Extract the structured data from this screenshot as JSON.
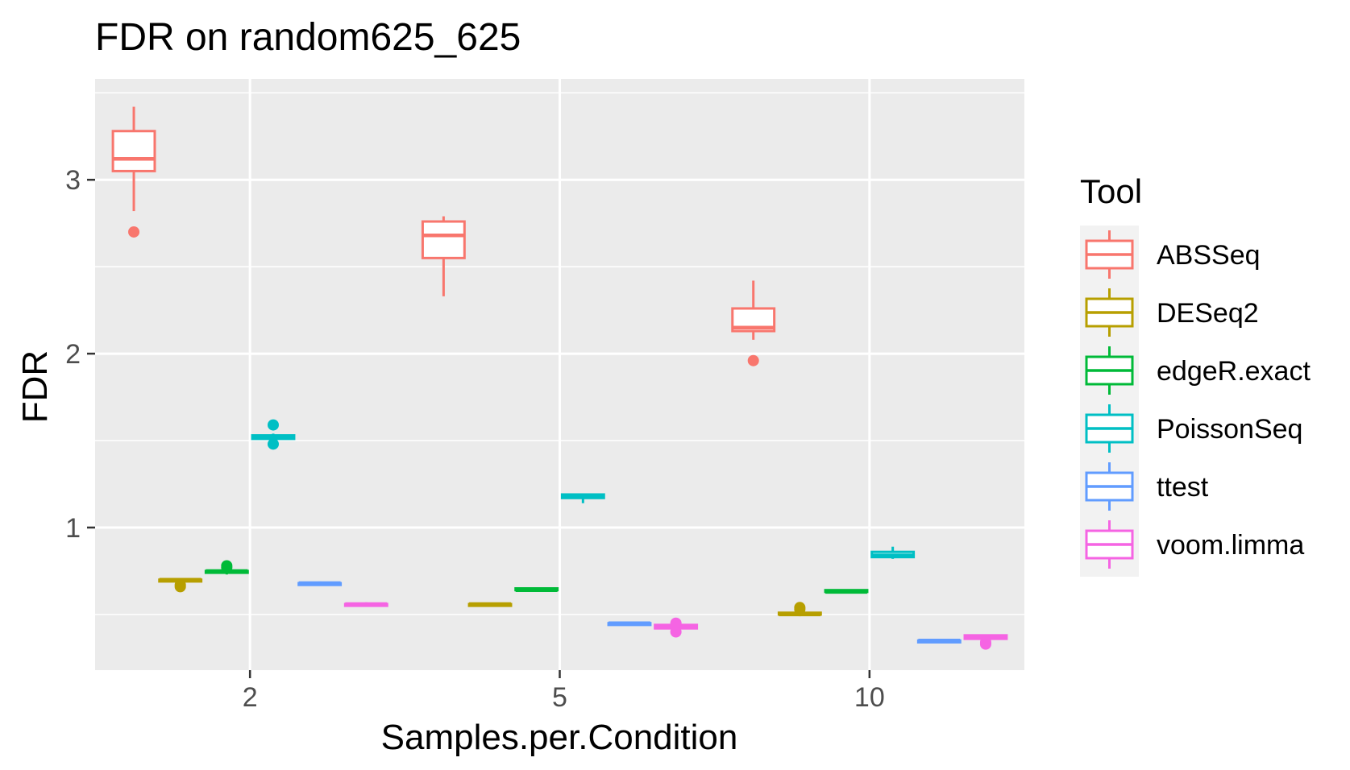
{
  "chart_data": {
    "type": "boxplot",
    "title": "FDR on random625_625",
    "xlabel": "Samples.per.Condition",
    "ylabel": "FDR",
    "categories": [
      "2",
      "5",
      "10"
    ],
    "yticks": [
      1,
      2,
      3
    ],
    "ylim": [
      0.18,
      3.58
    ],
    "grid": true,
    "legend": {
      "title": "Tool",
      "position": "right"
    },
    "series": [
      {
        "name": "ABSSeq",
        "color": "#F8766D",
        "boxes": [
          {
            "min": 2.82,
            "q1": 3.05,
            "median": 3.12,
            "q3": 3.28,
            "max": 3.42,
            "outliers": [
              2.7
            ]
          },
          {
            "min": 2.33,
            "q1": 2.55,
            "median": 2.68,
            "q3": 2.76,
            "max": 2.79,
            "outliers": []
          },
          {
            "min": 2.08,
            "q1": 2.13,
            "median": 2.15,
            "q3": 2.26,
            "max": 2.42,
            "outliers": [
              1.96
            ]
          }
        ]
      },
      {
        "name": "DESeq2",
        "color": "#B79F00",
        "boxes": [
          {
            "min": 0.69,
            "q1": 0.69,
            "median": 0.7,
            "q3": 0.7,
            "max": 0.71,
            "outliers": [
              0.66,
              0.67
            ]
          },
          {
            "min": 0.55,
            "q1": 0.55,
            "median": 0.56,
            "q3": 0.56,
            "max": 0.56,
            "outliers": []
          },
          {
            "min": 0.49,
            "q1": 0.5,
            "median": 0.5,
            "q3": 0.51,
            "max": 0.51,
            "outliers": [
              0.53,
              0.54
            ]
          }
        ]
      },
      {
        "name": "edgeR.exact",
        "color": "#00BA38",
        "boxes": [
          {
            "min": 0.73,
            "q1": 0.74,
            "median": 0.75,
            "q3": 0.75,
            "max": 0.76,
            "outliers": [
              0.77,
              0.78
            ]
          },
          {
            "min": 0.63,
            "q1": 0.64,
            "median": 0.64,
            "q3": 0.65,
            "max": 0.65,
            "outliers": []
          },
          {
            "min": 0.62,
            "q1": 0.63,
            "median": 0.63,
            "q3": 0.64,
            "max": 0.64,
            "outliers": []
          }
        ]
      },
      {
        "name": "PoissonSeq",
        "color": "#00BFC4",
        "boxes": [
          {
            "min": 1.5,
            "q1": 1.51,
            "median": 1.52,
            "q3": 1.53,
            "max": 1.54,
            "outliers": [
              1.59,
              1.48
            ]
          },
          {
            "min": 1.14,
            "q1": 1.17,
            "median": 1.18,
            "q3": 1.19,
            "max": 1.19,
            "outliers": []
          },
          {
            "min": 0.82,
            "q1": 0.83,
            "median": 0.84,
            "q3": 0.86,
            "max": 0.89,
            "outliers": []
          }
        ]
      },
      {
        "name": "ttest",
        "color": "#619CFF",
        "boxes": [
          {
            "min": 0.67,
            "q1": 0.67,
            "median": 0.68,
            "q3": 0.68,
            "max": 0.69,
            "outliers": []
          },
          {
            "min": 0.44,
            "q1": 0.44,
            "median": 0.45,
            "q3": 0.45,
            "max": 0.46,
            "outliers": []
          },
          {
            "min": 0.34,
            "q1": 0.34,
            "median": 0.35,
            "q3": 0.35,
            "max": 0.36,
            "outliers": []
          }
        ]
      },
      {
        "name": "voom.limma",
        "color": "#F564E3",
        "boxes": [
          {
            "min": 0.55,
            "q1": 0.55,
            "median": 0.56,
            "q3": 0.56,
            "max": 0.57,
            "outliers": []
          },
          {
            "min": 0.41,
            "q1": 0.42,
            "median": 0.43,
            "q3": 0.44,
            "max": 0.45,
            "outliers": [
              0.4,
              0.45
            ]
          },
          {
            "min": 0.35,
            "q1": 0.36,
            "median": 0.37,
            "q3": 0.38,
            "max": 0.38,
            "outliers": [
              0.34,
              0.33
            ]
          }
        ]
      }
    ]
  }
}
